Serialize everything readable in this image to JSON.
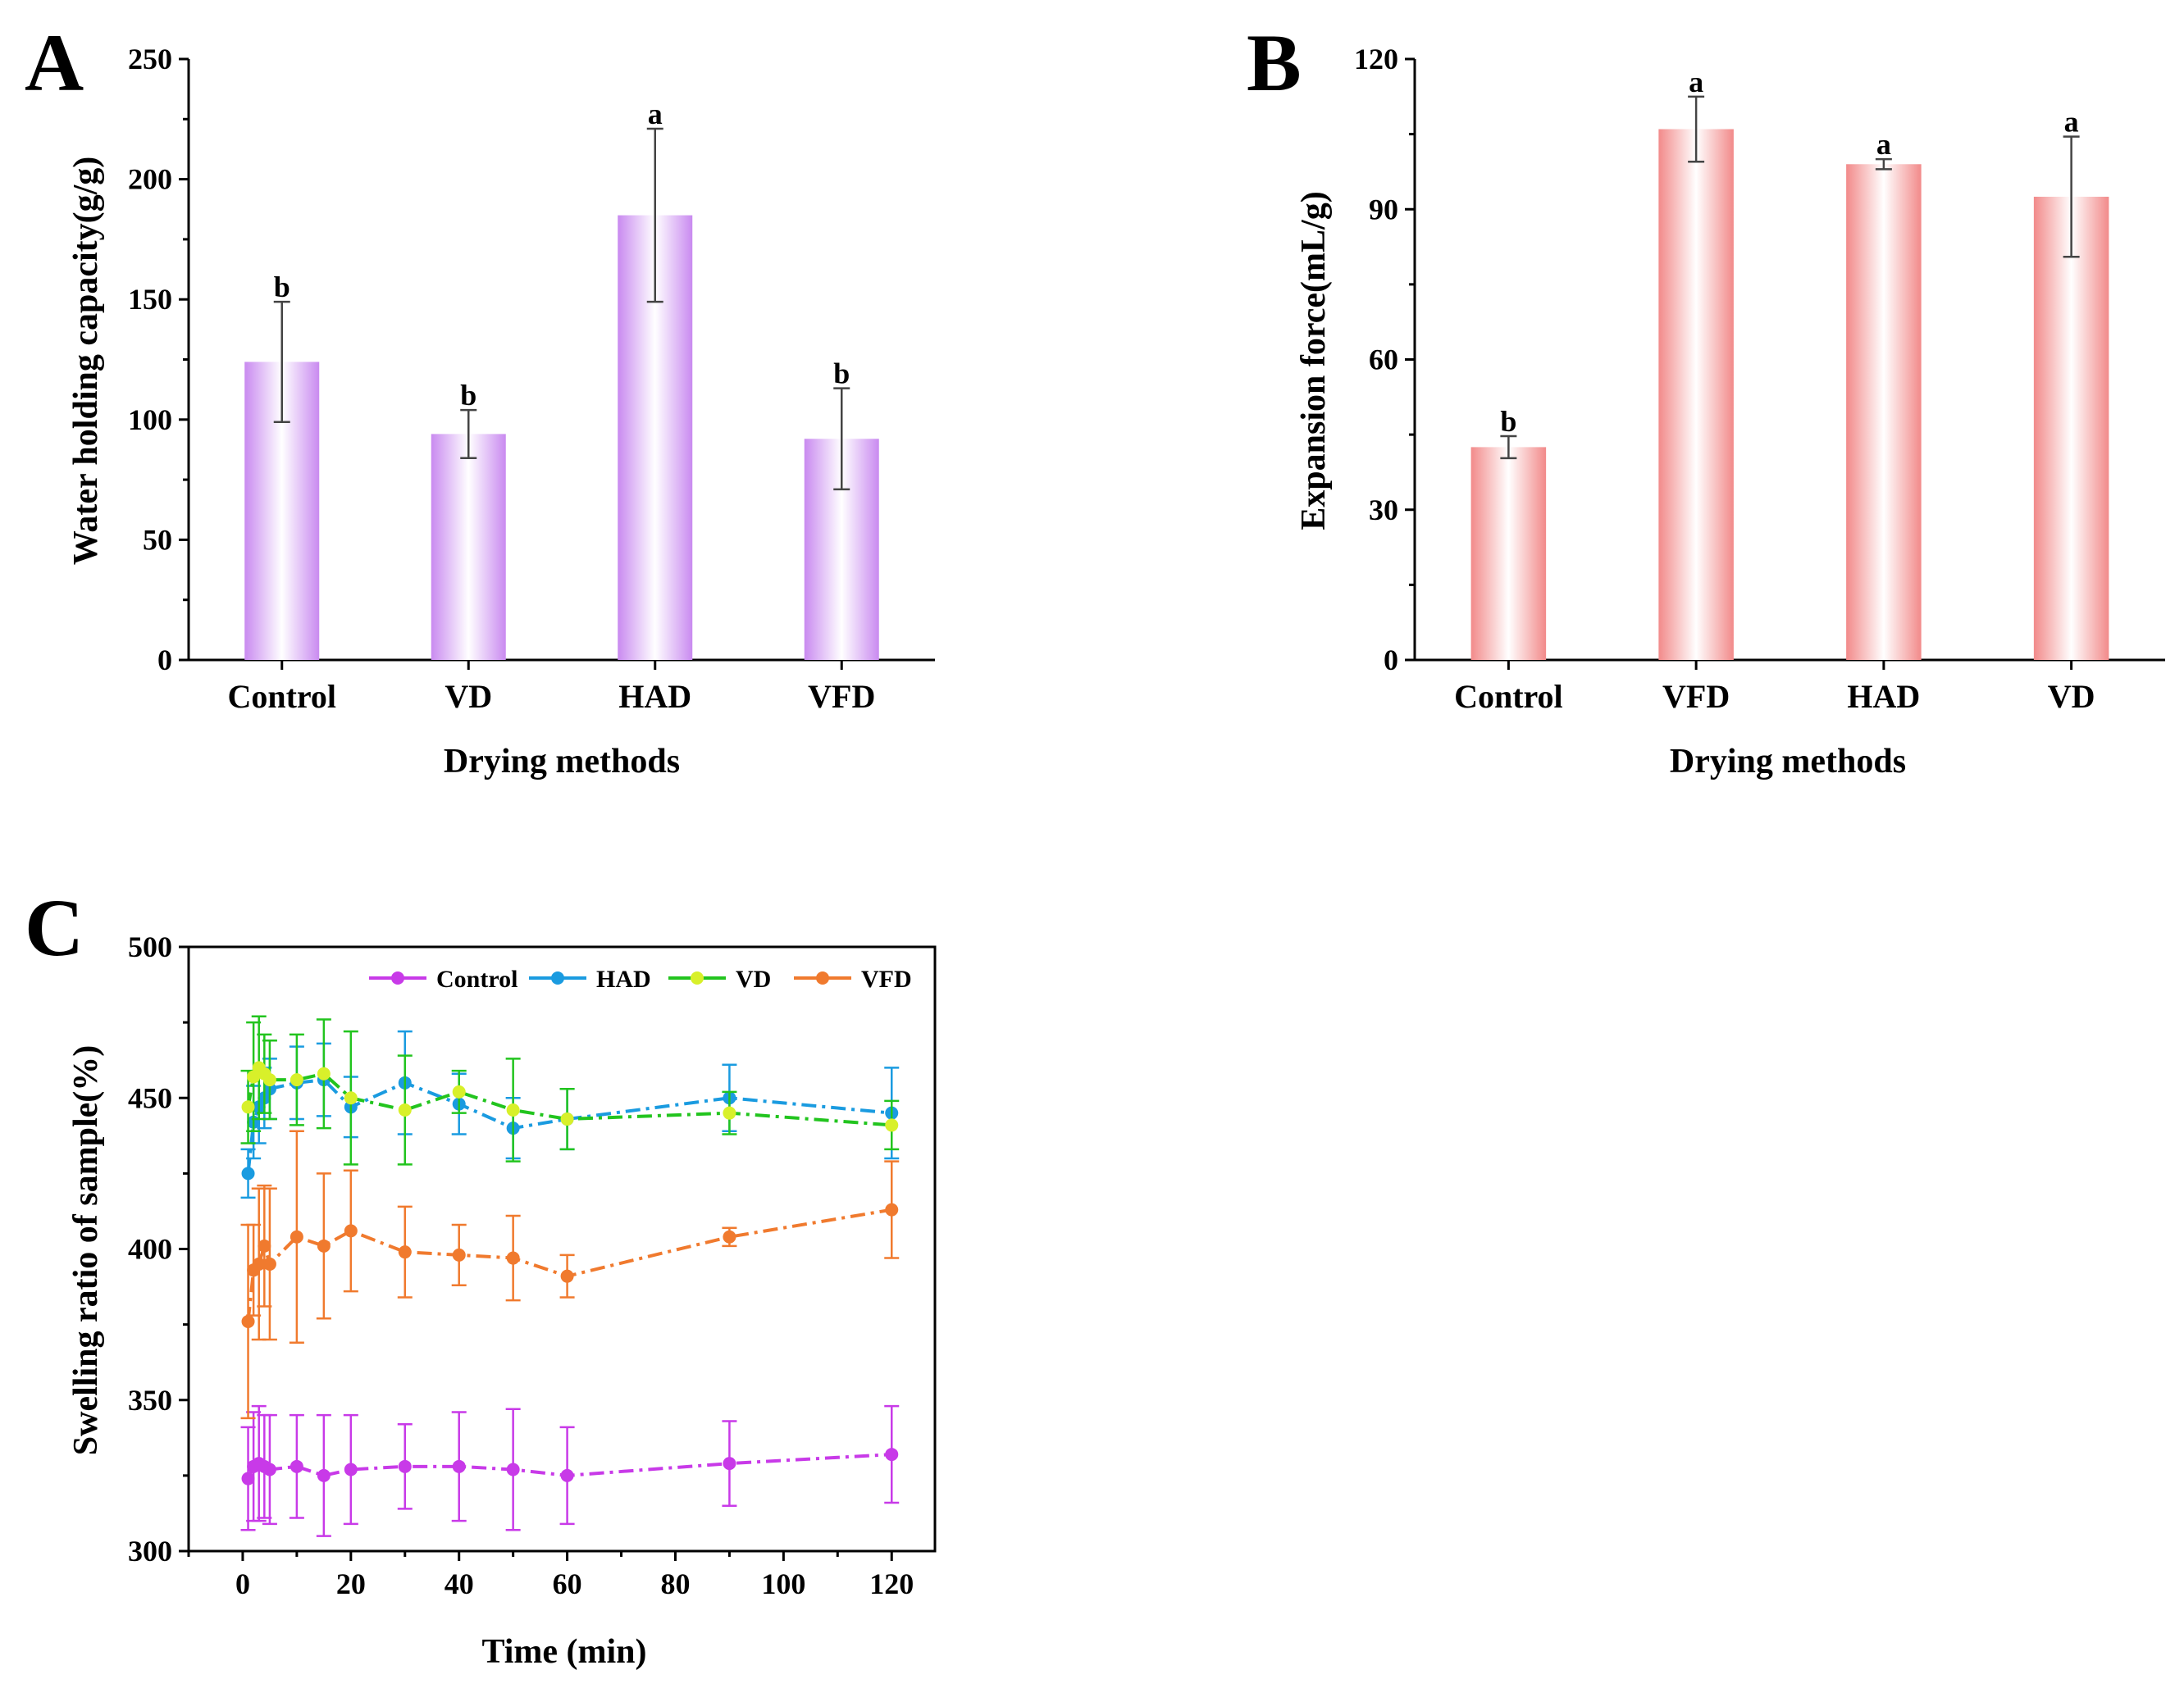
{
  "chart_data": [
    {
      "panel": "A",
      "type": "bar",
      "title": "",
      "xlabel": "Drying methods",
      "ylabel": "Water holding capacity(g/g)",
      "ylim": [
        0,
        250
      ],
      "yticks": [
        0,
        50,
        100,
        150,
        200,
        250
      ],
      "categories": [
        "Control",
        "VD",
        "HAD",
        "VFD"
      ],
      "values": [
        124,
        94,
        185,
        92
      ],
      "errors": [
        25,
        10,
        36,
        21
      ],
      "significance": [
        "b",
        "b",
        "a",
        "b"
      ],
      "bar_color": "#c98af0"
    },
    {
      "panel": "B",
      "type": "bar",
      "title": "",
      "xlabel": "Drying methods",
      "ylabel": "Expansion force(mL/g)",
      "ylim": [
        0,
        120
      ],
      "yticks": [
        0,
        30,
        60,
        90,
        120
      ],
      "categories": [
        "Control",
        "VFD",
        "HAD",
        "VD"
      ],
      "values": [
        42.5,
        106,
        99,
        92.5
      ],
      "errors": [
        2.2,
        6.5,
        1,
        12
      ],
      "significance": [
        "b",
        "a",
        "a",
        "a"
      ],
      "bar_color": "#f28a8a"
    },
    {
      "panel": "C",
      "type": "line",
      "title": "",
      "xlabel": "Time (min)",
      "ylabel": "Swelling ratio of sample(%)",
      "xlim": [
        -10,
        128
      ],
      "ylim": [
        300,
        500
      ],
      "xticks": [
        0,
        20,
        40,
        60,
        80,
        100,
        120
      ],
      "yticks": [
        300,
        350,
        400,
        450,
        500
      ],
      "x": [
        1,
        2,
        3,
        4,
        5,
        10,
        15,
        20,
        30,
        40,
        50,
        60,
        90,
        120
      ],
      "series": [
        {
          "name": "Control",
          "color": "#c83ae8",
          "values": [
            324,
            328,
            329,
            328,
            327,
            328,
            325,
            327,
            328,
            328,
            327,
            325,
            329,
            332
          ],
          "errors": [
            17,
            18,
            19,
            17,
            18,
            17,
            20,
            18,
            14,
            18,
            20,
            16,
            14,
            16
          ]
        },
        {
          "name": "HAD",
          "color": "#1a9be0",
          "values": [
            425,
            442,
            447,
            450,
            453,
            455,
            456,
            447,
            455,
            448,
            440,
            443,
            450,
            445
          ],
          "errors": [
            8,
            12,
            12,
            10,
            10,
            12,
            12,
            10,
            17,
            10,
            10,
            10,
            11,
            15
          ]
        },
        {
          "name": "VD",
          "color": "#22c41e",
          "marker_color": "#d8f02a",
          "values": [
            447,
            457,
            460,
            458,
            456,
            456,
            458,
            450,
            446,
            452,
            446,
            443,
            445,
            441
          ],
          "errors": [
            12,
            18,
            17,
            13,
            13,
            15,
            18,
            22,
            18,
            7,
            17,
            10,
            7,
            8
          ]
        },
        {
          "name": "VFD",
          "color": "#f07a2e",
          "values": [
            376,
            393,
            395,
            401,
            395,
            404,
            401,
            406,
            399,
            398,
            397,
            391,
            404,
            413
          ],
          "errors": [
            32,
            15,
            25,
            20,
            25,
            35,
            24,
            20,
            15,
            10,
            14,
            7,
            3,
            16
          ]
        }
      ]
    }
  ]
}
